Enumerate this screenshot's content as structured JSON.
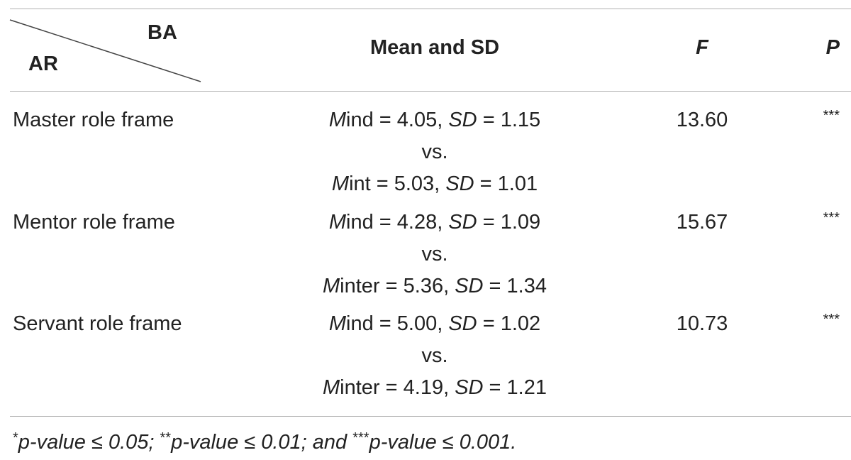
{
  "header": {
    "column_label": "BA",
    "row_label": "AR",
    "columns": [
      "Mean and SD",
      "F",
      "P"
    ]
  },
  "rows": [
    {
      "label": "Master role frame",
      "mean_sd": [
        [
          {
            "text": "M",
            "italic": true
          },
          {
            "text": "ind = 4.05, "
          },
          {
            "text": "SD",
            "italic": true
          },
          {
            "text": " = 1.15"
          }
        ],
        [
          {
            "text": "vs."
          }
        ],
        [
          {
            "text": "M",
            "italic": true
          },
          {
            "text": "int = 5.03, "
          },
          {
            "text": "SD",
            "italic": true
          },
          {
            "text": " = 1.01"
          }
        ]
      ],
      "f": "13.60",
      "p": "***"
    },
    {
      "label": "Mentor role frame",
      "mean_sd": [
        [
          {
            "text": "M",
            "italic": true
          },
          {
            "text": "ind = 4.28, "
          },
          {
            "text": "SD",
            "italic": true
          },
          {
            "text": " = 1.09"
          }
        ],
        [
          {
            "text": "vs."
          }
        ],
        [
          {
            "text": "M",
            "italic": true
          },
          {
            "text": "inter = 5.36, "
          },
          {
            "text": "SD",
            "italic": true
          },
          {
            "text": " = 1.34"
          }
        ]
      ],
      "f": "15.67",
      "p": "***"
    },
    {
      "label": "Servant role frame",
      "mean_sd": [
        [
          {
            "text": "M",
            "italic": true
          },
          {
            "text": "ind = 5.00, "
          },
          {
            "text": "SD",
            "italic": true
          },
          {
            "text": " = 1.02"
          }
        ],
        [
          {
            "text": "vs."
          }
        ],
        [
          {
            "text": "M",
            "italic": true
          },
          {
            "text": "inter = 4.19, "
          },
          {
            "text": "SD",
            "italic": true
          },
          {
            "text": " = 1.21"
          }
        ]
      ],
      "f": "10.73",
      "p": "***"
    }
  ],
  "footnote": [
    {
      "text": "*",
      "superscript": true
    },
    {
      "text": "p-value ≤ 0.05; ",
      "italic": true
    },
    {
      "text": "**",
      "superscript": true
    },
    {
      "text": "p-value ≤ 0.01; and ",
      "italic": true
    },
    {
      "text": "***",
      "superscript": true
    },
    {
      "text": "p-value ≤ 0.001.",
      "italic": true
    }
  ]
}
